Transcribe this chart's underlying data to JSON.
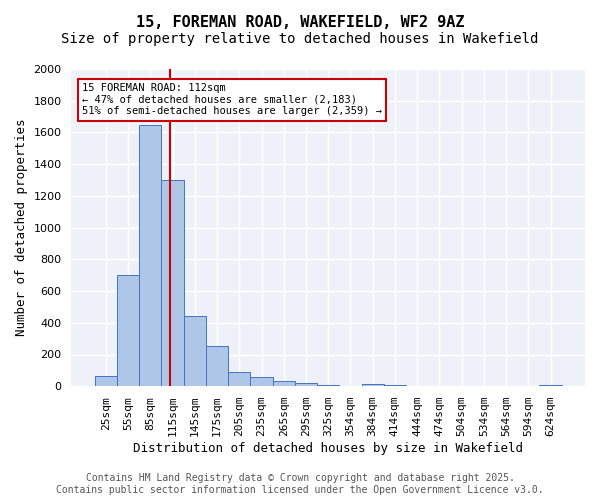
{
  "title_line1": "15, FOREMAN ROAD, WAKEFIELD, WF2 9AZ",
  "title_line2": "Size of property relative to detached houses in Wakefield",
  "xlabel": "Distribution of detached houses by size in Wakefield",
  "ylabel": "Number of detached properties",
  "categories": [
    "25sqm",
    "55sqm",
    "85sqm",
    "115sqm",
    "145sqm",
    "175sqm",
    "205sqm",
    "235sqm",
    "265sqm",
    "295sqm",
    "325sqm",
    "354sqm",
    "384sqm",
    "414sqm",
    "444sqm",
    "474sqm",
    "504sqm",
    "534sqm",
    "564sqm",
    "594sqm",
    "624sqm"
  ],
  "values": [
    65,
    700,
    1650,
    1300,
    440,
    255,
    90,
    55,
    35,
    20,
    10,
    0,
    15,
    10,
    0,
    0,
    0,
    0,
    0,
    0,
    10
  ],
  "bar_color": "#aec6e8",
  "bar_edge_color": "#4472c4",
  "red_line_x": 2.9,
  "annotation_text": "15 FOREMAN ROAD: 112sqm\n← 47% of detached houses are smaller (2,183)\n51% of semi-detached houses are larger (2,359) →",
  "annotation_box_color": "#ffffff",
  "annotation_border_color": "#cc0000",
  "ylim": [
    0,
    2000
  ],
  "yticks": [
    0,
    200,
    400,
    600,
    800,
    1000,
    1200,
    1400,
    1600,
    1800,
    2000
  ],
  "background_color": "#eef2f8",
  "grid_color": "#ffffff",
  "footer_line1": "Contains HM Land Registry data © Crown copyright and database right 2025.",
  "footer_line2": "Contains public sector information licensed under the Open Government Licence v3.0.",
  "title_fontsize": 11,
  "subtitle_fontsize": 10,
  "tick_fontsize": 8,
  "label_fontsize": 9,
  "footer_fontsize": 7
}
